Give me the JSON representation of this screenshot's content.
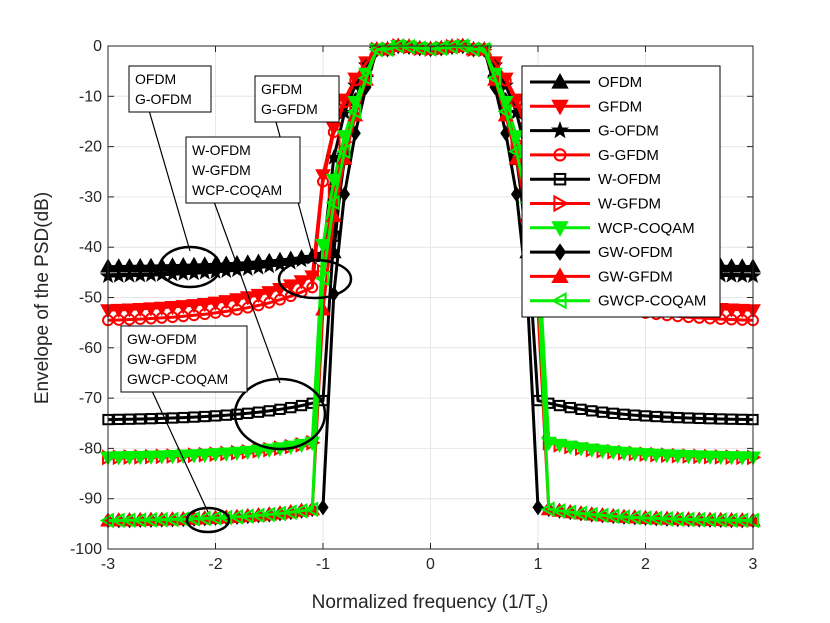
{
  "chart_data": {
    "type": "line",
    "xlabel": "Normalized frequency (1/T",
    "xlabel_sub": "s",
    "xlabel_end": ")",
    "ylabel": "Envelope of the PSD(dB)",
    "xlim": [
      -3,
      3
    ],
    "ylim": [
      -100,
      0
    ],
    "x_ticks": [
      -3,
      -2,
      -1,
      0,
      1,
      2,
      3
    ],
    "y_ticks": [
      0,
      -10,
      -20,
      -30,
      -40,
      -50,
      -60,
      -70,
      -80,
      -90,
      -100
    ],
    "x_tick_labels": [
      "-3",
      "-2",
      "-1",
      "0",
      "1",
      "2",
      "3"
    ],
    "y_tick_labels": [
      "0",
      "-10",
      "-20",
      "-30",
      "-40",
      "-50",
      "-60",
      "-70",
      "-80",
      "-90",
      "-100"
    ],
    "legend_position": "top-right",
    "series": [
      {
        "name": "OFDM",
        "color": "#000000",
        "marker": "triangle-up",
        "floor": -44,
        "k": 0.12,
        "w": 0.35
      },
      {
        "name": "GFDM",
        "color": "#ff0000",
        "marker": "triangle-down",
        "floor": -53,
        "k": 0.32,
        "w": 0.55
      },
      {
        "name": "G-OFDM",
        "color": "#000000",
        "marker": "star",
        "floor": -46,
        "k": 0.2,
        "w": 0.45
      },
      {
        "name": "G-GFDM",
        "color": "#ff0000",
        "marker": "circle",
        "floor": -55,
        "k": 0.3,
        "w": 0.55
      },
      {
        "name": "W-OFDM",
        "color": "#000000",
        "marker": "square",
        "floor": -74.5,
        "k": 0.11,
        "w": 0.45
      },
      {
        "name": "W-GFDM",
        "color": "#ff0000",
        "marker": "triangle-right",
        "floor": -82,
        "k": 0.09,
        "w": 0.55
      },
      {
        "name": "WCP-COQAM",
        "color": "#00ee00",
        "marker": "triangle-down",
        "floor": -82,
        "k": 0.09,
        "w": 0.58
      },
      {
        "name": "GW-OFDM",
        "color": "#000000",
        "marker": "diamond",
        "floor": -94.5,
        "k": 0.06,
        "w": 0.45
      },
      {
        "name": "GW-GFDM",
        "color": "#ff0000",
        "marker": "triangle-up",
        "floor": -94.5,
        "k": 0.06,
        "w": 0.55
      },
      {
        "name": "GWCP-COQAM",
        "color": "#00ee00",
        "marker": "triangle-left",
        "floor": -94.5,
        "k": 0.06,
        "w": 0.58
      }
    ],
    "annotations": [
      {
        "id": "a1",
        "lines": [
          "OFDM",
          "G-OFDM"
        ],
        "target_x": -2.3,
        "target_y": -44
      },
      {
        "id": "a2",
        "lines": [
          "GFDM",
          "G-GFDM"
        ],
        "target_x": -1.1,
        "target_y": -48
      },
      {
        "id": "a3",
        "lines": [
          "W-OFDM",
          "W-GFDM",
          "WCP-COQAM"
        ],
        "target_x": -1.5,
        "target_y": -73
      },
      {
        "id": "a4",
        "lines": [
          "GW-OFDM",
          "GW-GFDM",
          "GWCP-COQAM"
        ],
        "target_x": -2.1,
        "target_y": -94
      }
    ]
  }
}
